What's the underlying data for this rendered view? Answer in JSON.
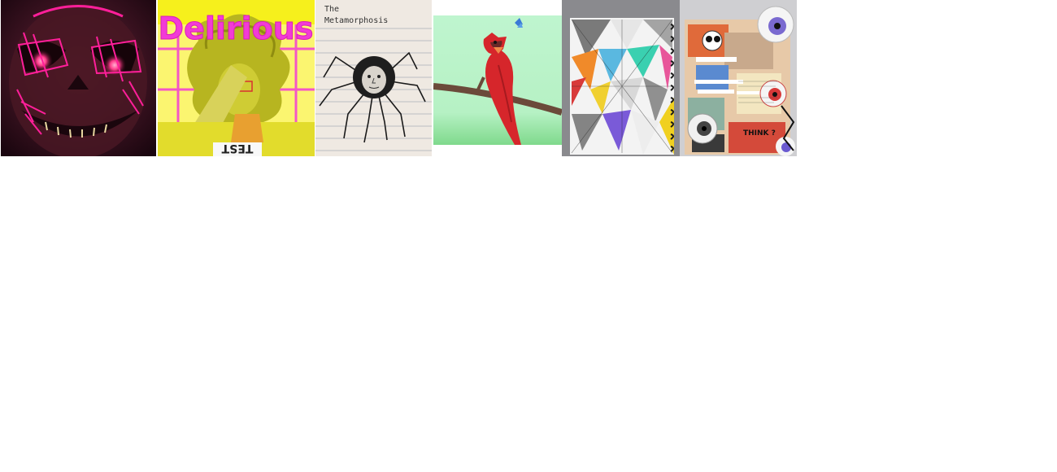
{
  "gallery": {
    "items": [
      {
        "name": "grinning-skull-portrait"
      },
      {
        "name": "delirious-portrait",
        "title": "Delirious",
        "paper_text": "TEST"
      },
      {
        "name": "metamorphosis-spider-sketch",
        "title_line1": "The",
        "title_line2": "Metamorphosis"
      },
      {
        "name": "cardinal-on-branch"
      },
      {
        "name": "geometric-sketchbook-collage"
      },
      {
        "name": "eyeball-collage-journal",
        "snippet": "THINK ?"
      }
    ]
  },
  "colors": {
    "page_background": "#ffffff",
    "skull_dark": "#3a1220",
    "neon_pink": "#ff1f9a",
    "delirious_yellow": "#f6f01c",
    "delirious_magenta": "#f23bd6",
    "cardinal_red": "#d6262b",
    "mint_green": "#bff5cf"
  }
}
